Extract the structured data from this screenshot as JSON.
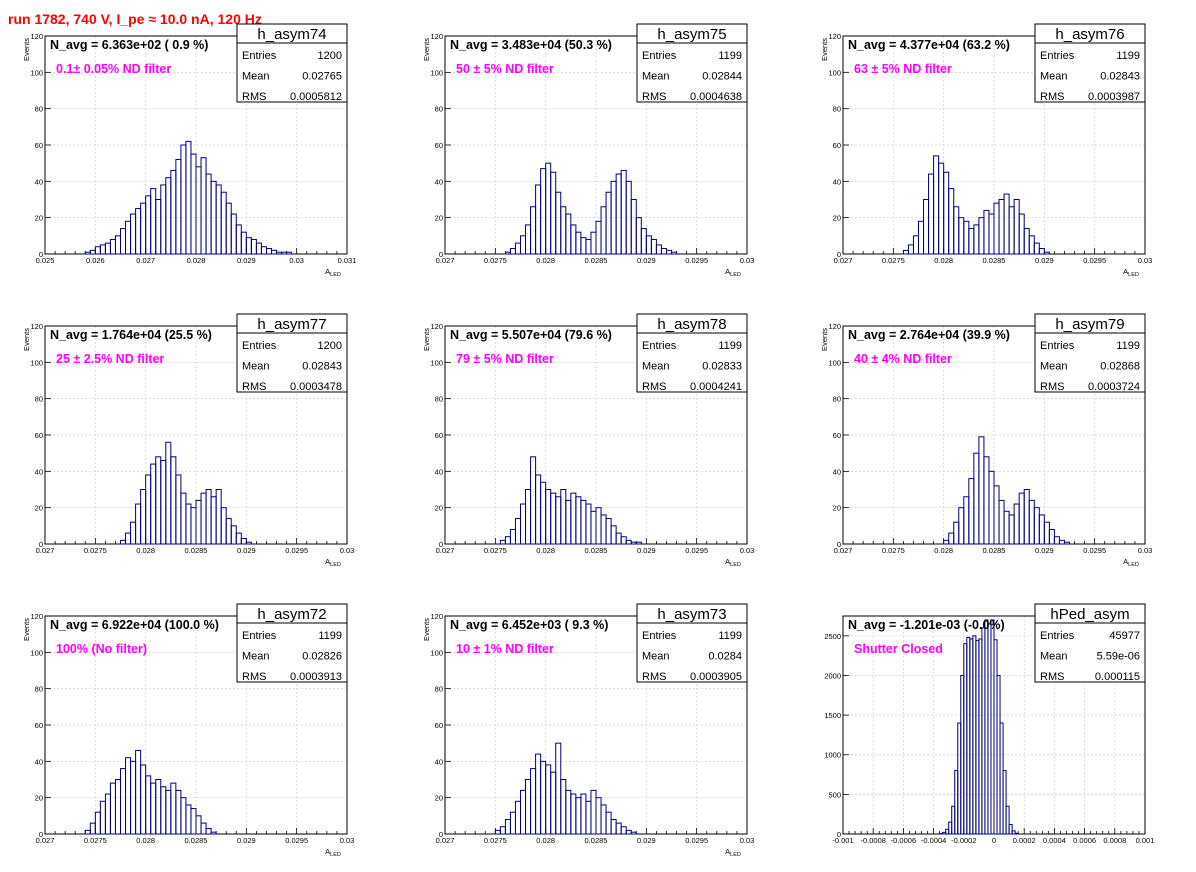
{
  "header": {
    "title": "run 1782,   740 V, I_pe ≈ 10.0 nA, 120 Hz"
  },
  "colors": {
    "title": "#ff0000",
    "histogram": "#000080",
    "filter_label": "#ff00ff",
    "grid": "#cccccc"
  },
  "chart_data": [
    {
      "type": "bar",
      "name": "h_asym74",
      "navg": "N_avg = 6.363e+02 ( 0.9 %)",
      "filter": "0.1± 0.05% ND filter",
      "stats": [
        [
          "Entries",
          "1200"
        ],
        [
          "Mean",
          "0.02765"
        ],
        [
          "RMS",
          "0.0005812"
        ]
      ],
      "xlabel": "A",
      "xlabel_sub": "LED",
      "ylabel": "Events",
      "xlim": [
        0.025,
        0.031
      ],
      "ylim": [
        0,
        120
      ],
      "xticks": [
        0.025,
        0.026,
        0.027,
        0.028,
        0.029,
        0.03,
        0.031
      ],
      "xtick_labels": [
        "0.025",
        "0.026",
        "0.027",
        "0.028",
        "0.029",
        "0.03",
        "0.031"
      ],
      "yticks": [
        0,
        20,
        40,
        60,
        80,
        100,
        120
      ],
      "ytick_labels": [
        "0",
        "20",
        "40",
        "60",
        "80",
        "100",
        "120"
      ],
      "bin_start": 0.0258,
      "bin_width": 0.0001,
      "values": [
        1,
        2,
        4,
        5,
        6,
        8,
        10,
        14,
        18,
        22,
        25,
        28,
        32,
        36,
        30,
        38,
        42,
        46,
        52,
        60,
        62,
        55,
        48,
        53,
        44,
        40,
        38,
        34,
        28,
        22,
        16,
        12,
        9,
        8,
        6,
        4,
        3,
        2,
        1,
        1,
        1
      ]
    },
    {
      "type": "bar",
      "name": "h_asym75",
      "navg": "N_avg = 3.483e+04 (50.3 %)",
      "filter": "50 ± 5% ND filter",
      "stats": [
        [
          "Entries",
          "1199"
        ],
        [
          "Mean",
          "0.02844"
        ],
        [
          "RMS",
          "0.0004638"
        ]
      ],
      "xlabel": "A",
      "xlabel_sub": "LED",
      "ylabel": "Events",
      "xlim": [
        0.027,
        0.03
      ],
      "ylim": [
        0,
        120
      ],
      "xticks": [
        0.027,
        0.0275,
        0.028,
        0.0285,
        0.029,
        0.0295,
        0.03
      ],
      "xtick_labels": [
        "0.027",
        "0.0275",
        "0.028",
        "0.0285",
        "0.029",
        "0.0295",
        "0.03"
      ],
      "yticks": [
        0,
        20,
        40,
        60,
        80,
        100,
        120
      ],
      "ytick_labels": [
        "0",
        "20",
        "40",
        "60",
        "80",
        "100",
        "120"
      ],
      "bin_start": 0.0276,
      "bin_width": 5e-05,
      "values": [
        1,
        3,
        6,
        10,
        16,
        26,
        38,
        47,
        50,
        45,
        34,
        26,
        22,
        16,
        12,
        9,
        8,
        12,
        18,
        26,
        34,
        40,
        44,
        46,
        40,
        30,
        20,
        14,
        10,
        8,
        5,
        3,
        2,
        1
      ]
    },
    {
      "type": "bar",
      "name": "h_asym76",
      "navg": "N_avg = 4.377e+04 (63.2 %)",
      "filter": "63 ± 5% ND filter",
      "stats": [
        [
          "Entries",
          "1199"
        ],
        [
          "Mean",
          "0.02843"
        ],
        [
          "RMS",
          "0.0003987"
        ]
      ],
      "xlabel": "A",
      "xlabel_sub": "LED",
      "ylabel": "Events",
      "xlim": [
        0.027,
        0.03
      ],
      "ylim": [
        0,
        120
      ],
      "xticks": [
        0.027,
        0.0275,
        0.028,
        0.0285,
        0.029,
        0.0295,
        0.03
      ],
      "xtick_labels": [
        "0.027",
        "0.0275",
        "0.028",
        "0.0285",
        "0.029",
        "0.0295",
        "0.03"
      ],
      "yticks": [
        0,
        20,
        40,
        60,
        80,
        100,
        120
      ],
      "ytick_labels": [
        "0",
        "20",
        "40",
        "60",
        "80",
        "100",
        "120"
      ],
      "bin_start": 0.0276,
      "bin_width": 5e-05,
      "values": [
        2,
        5,
        10,
        18,
        30,
        44,
        54,
        50,
        45,
        36,
        26,
        20,
        18,
        14,
        16,
        20,
        24,
        22,
        28,
        30,
        33,
        26,
        30,
        22,
        14,
        10,
        6,
        3,
        1
      ]
    },
    {
      "type": "bar",
      "name": "h_asym77",
      "navg": "N_avg = 1.764e+04 (25.5 %)",
      "filter": "25 ± 2.5% ND filter",
      "stats": [
        [
          "Entries",
          "1200"
        ],
        [
          "Mean",
          "0.02843"
        ],
        [
          "RMS",
          "0.0003478"
        ]
      ],
      "xlabel": "A",
      "xlabel_sub": "LED",
      "ylabel": "Events",
      "xlim": [
        0.027,
        0.03
      ],
      "ylim": [
        0,
        120
      ],
      "xticks": [
        0.027,
        0.0275,
        0.028,
        0.0285,
        0.029,
        0.0295,
        0.03
      ],
      "xtick_labels": [
        "0.027",
        "0.0275",
        "0.028",
        "0.0285",
        "0.029",
        "0.0295",
        "0.03"
      ],
      "yticks": [
        0,
        20,
        40,
        60,
        80,
        100,
        120
      ],
      "ytick_labels": [
        "0",
        "20",
        "40",
        "60",
        "80",
        "100",
        "120"
      ],
      "bin_start": 0.02775,
      "bin_width": 5e-05,
      "values": [
        2,
        6,
        12,
        22,
        30,
        38,
        44,
        48,
        46,
        56,
        48,
        38,
        28,
        22,
        20,
        24,
        28,
        30,
        26,
        30,
        20,
        14,
        10,
        6,
        3,
        1
      ]
    },
    {
      "type": "bar",
      "name": "h_asym78",
      "navg": "N_avg = 5.507e+04 (79.6 %)",
      "filter": "79 ± 5% ND filter",
      "stats": [
        [
          "Entries",
          "1199"
        ],
        [
          "Mean",
          "0.02833"
        ],
        [
          "RMS",
          "0.0004241"
        ]
      ],
      "xlabel": "A",
      "xlabel_sub": "LED",
      "ylabel": "Events",
      "xlim": [
        0.027,
        0.03
      ],
      "ylim": [
        0,
        120
      ],
      "xticks": [
        0.027,
        0.0275,
        0.028,
        0.0285,
        0.029,
        0.0295,
        0.03
      ],
      "xtick_labels": [
        "0.027",
        "0.0275",
        "0.028",
        "0.0285",
        "0.029",
        "0.0295",
        "0.03"
      ],
      "yticks": [
        0,
        20,
        40,
        60,
        80,
        100,
        120
      ],
      "ytick_labels": [
        "0",
        "20",
        "40",
        "60",
        "80",
        "100",
        "120"
      ],
      "bin_start": 0.02755,
      "bin_width": 5e-05,
      "values": [
        2,
        4,
        8,
        14,
        22,
        30,
        48,
        38,
        34,
        30,
        28,
        26,
        30,
        24,
        28,
        26,
        24,
        22,
        18,
        20,
        16,
        14,
        10,
        6,
        4,
        2,
        1,
        1
      ]
    },
    {
      "type": "bar",
      "name": "h_asym79",
      "navg": "N_avg = 2.764e+04 (39.9 %)",
      "filter": "40 ± 4% ND filter",
      "stats": [
        [
          "Entries",
          "1199"
        ],
        [
          "Mean",
          "0.02868"
        ],
        [
          "RMS",
          "0.0003724"
        ]
      ],
      "xlabel": "A",
      "xlabel_sub": "LED",
      "ylabel": "Events",
      "xlim": [
        0.027,
        0.03
      ],
      "ylim": [
        0,
        120
      ],
      "xticks": [
        0.027,
        0.0275,
        0.028,
        0.0285,
        0.029,
        0.0295,
        0.03
      ],
      "xtick_labels": [
        "0.027",
        "0.0275",
        "0.028",
        "0.0285",
        "0.029",
        "0.0295",
        "0.03"
      ],
      "yticks": [
        0,
        20,
        40,
        60,
        80,
        100,
        120
      ],
      "ytick_labels": [
        "0",
        "20",
        "40",
        "60",
        "80",
        "100",
        "120"
      ],
      "bin_start": 0.028,
      "bin_width": 5e-05,
      "values": [
        2,
        6,
        12,
        20,
        26,
        36,
        50,
        59,
        48,
        40,
        32,
        24,
        18,
        16,
        22,
        28,
        30,
        24,
        20,
        16,
        12,
        8,
        4,
        2,
        1
      ]
    },
    {
      "type": "bar",
      "name": "h_asym72",
      "navg": "N_avg = 6.922e+04 (100.0 %)",
      "filter": "100% (No filter)",
      "stats": [
        [
          "Entries",
          "1199"
        ],
        [
          "Mean",
          "0.02826"
        ],
        [
          "RMS",
          "0.0003913"
        ]
      ],
      "xlabel": "A",
      "xlabel_sub": "LED",
      "ylabel": "Events",
      "xlim": [
        0.027,
        0.03
      ],
      "ylim": [
        0,
        120
      ],
      "xticks": [
        0.027,
        0.0275,
        0.028,
        0.0285,
        0.029,
        0.0295,
        0.03
      ],
      "xtick_labels": [
        "0.027",
        "0.0275",
        "0.028",
        "0.0285",
        "0.029",
        "0.0295",
        "0.03"
      ],
      "yticks": [
        0,
        20,
        40,
        60,
        80,
        100,
        120
      ],
      "ytick_labels": [
        "0",
        "20",
        "40",
        "60",
        "80",
        "100",
        "120"
      ],
      "bin_start": 0.0274,
      "bin_width": 5e-05,
      "values": [
        2,
        6,
        12,
        18,
        22,
        28,
        30,
        36,
        42,
        40,
        46,
        38,
        32,
        28,
        30,
        26,
        24,
        28,
        24,
        20,
        16,
        14,
        10,
        6,
        3,
        1
      ]
    },
    {
      "type": "bar",
      "name": "h_asym73",
      "navg": "N_avg = 6.452e+03 ( 9.3 %)",
      "filter": "10 ± 1% ND filter",
      "stats": [
        [
          "Entries",
          "1199"
        ],
        [
          "Mean",
          "0.0284"
        ],
        [
          "RMS",
          "0.0003905"
        ]
      ],
      "xlabel": "A",
      "xlabel_sub": "LED",
      "ylabel": "Events",
      "xlim": [
        0.027,
        0.03
      ],
      "ylim": [
        0,
        120
      ],
      "xticks": [
        0.027,
        0.0275,
        0.028,
        0.0285,
        0.029,
        0.0295,
        0.03
      ],
      "xtick_labels": [
        "0.027",
        "0.0275",
        "0.028",
        "0.0285",
        "0.029",
        "0.0295",
        "0.03"
      ],
      "yticks": [
        0,
        20,
        40,
        60,
        80,
        100,
        120
      ],
      "ytick_labels": [
        "0",
        "20",
        "40",
        "60",
        "80",
        "100",
        "120"
      ],
      "bin_start": 0.0275,
      "bin_width": 5e-05,
      "values": [
        2,
        4,
        8,
        12,
        18,
        24,
        30,
        36,
        44,
        40,
        38,
        34,
        50,
        30,
        24,
        22,
        20,
        22,
        18,
        24,
        20,
        16,
        12,
        8,
        6,
        4,
        2,
        1
      ]
    },
    {
      "type": "bar",
      "name": "hPed_asym",
      "navg": "N_avg = -1.201e-03 (-0.0%)",
      "filter": "Shutter Closed",
      "stats": [
        [
          "Entries",
          "45977"
        ],
        [
          "Mean",
          "5.59e-06"
        ],
        [
          "RMS",
          "0.000115"
        ]
      ],
      "xlabel": "",
      "xlabel_sub": "",
      "ylabel": "",
      "xlim": [
        -0.001,
        0.001
      ],
      "ylim": [
        0,
        2750
      ],
      "xticks": [
        -0.001,
        -0.0008,
        -0.0006,
        -0.0004,
        -0.0002,
        0,
        0.0002,
        0.0004,
        0.0006,
        0.0008,
        0.001
      ],
      "xtick_labels": [
        "-0.001",
        "-0.0008",
        "-0.0006",
        "-0.0004",
        "-0.0002",
        "0",
        "0.0002",
        "0.0004",
        "0.0006",
        "0.0008",
        "0.001"
      ],
      "yticks": [
        0,
        500,
        1000,
        1500,
        2000,
        2500
      ],
      "ytick_labels": [
        "0",
        "500",
        "1000",
        "1500",
        "2000",
        "2500"
      ],
      "bin_start": -0.00036,
      "bin_width": 2e-05,
      "values": [
        5,
        20,
        60,
        150,
        350,
        800,
        1400,
        2000,
        2400,
        2480,
        2460,
        2500,
        2440,
        2460,
        2600,
        2700,
        2650,
        2700,
        2450,
        2000,
        1400,
        800,
        350,
        120,
        40,
        10
      ]
    }
  ]
}
